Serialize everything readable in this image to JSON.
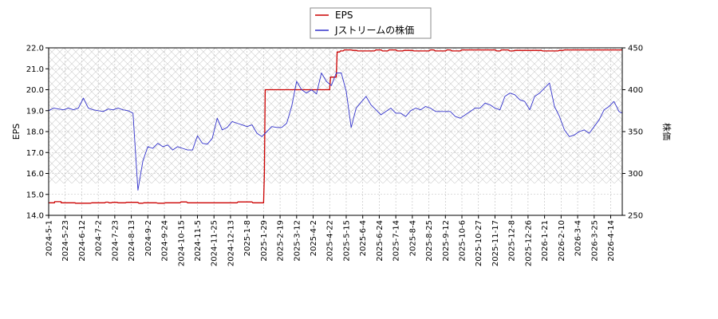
{
  "chart_data": {
    "type": "line",
    "legend_position": "top-center",
    "grid": true,
    "x_tick_labels": [
      "2024-5-1",
      "2024-5-23",
      "2024-6-12",
      "2024-7-2",
      "2024-7-23",
      "2024-8-13",
      "2024-9-2",
      "2024-9-24",
      "2024-10-15",
      "2024-11-5",
      "2024-11-25",
      "2024-12-13",
      "2025-1-8",
      "2025-1-29",
      "2025-2-19",
      "2025-3-12",
      "2025-4-2",
      "2025-4-22",
      "2025-5-15",
      "2025-6-4",
      "2025-6-24",
      "2025-7-14",
      "2025-8-4",
      "2025-8-25",
      "2025-9-12",
      "2025-10-6",
      "2025-10-27",
      "2025-11-17",
      "2025-12-8",
      "2025-12-26",
      "2026-1-21",
      "2026-2-10",
      "2026-3-4",
      "2026-3-25",
      "2026-4-14"
    ],
    "left_axis": {
      "label": "EPS",
      "ylim": [
        14.0,
        22.0
      ],
      "ticks": [
        "14.0",
        "15.0",
        "16.0",
        "17.0",
        "18.0",
        "19.0",
        "20.0",
        "21.0",
        "22.0"
      ]
    },
    "right_axis": {
      "label": "株価",
      "ylim": [
        250,
        450
      ],
      "ticks": [
        "250",
        "300",
        "350",
        "400",
        "450"
      ]
    },
    "series": [
      {
        "name": "EPS",
        "color": "#cc0000",
        "axis": "left",
        "x": [
          0,
          0.35,
          0.36,
          0.75,
          0.76,
          1.1,
          1.11,
          1.6,
          1.61,
          2.55,
          2.6,
          2.95,
          3.0,
          3.4,
          3.45,
          3.6,
          3.65,
          3.8,
          3.85,
          4.15,
          4.2,
          4.65,
          4.7,
          5.4,
          5.45,
          5.7,
          5.75,
          6.5,
          6.6,
          7.0,
          7.05,
          7.95,
          8.0,
          8.35,
          8.4,
          8.6,
          8.65,
          11.4,
          11.45,
          12.3,
          12.35,
          13.0,
          13.05,
          13.1,
          13.15,
          17.0,
          17.05,
          17.4,
          17.45,
          17.6,
          17.65,
          17.8,
          17.9,
          18.3,
          18.4,
          18.6,
          18.7,
          19.7,
          19.8,
          20.1,
          20.2,
          20.5,
          20.6,
          21.0,
          21.1,
          21.4,
          21.5,
          22.0,
          22.1,
          23.0,
          23.1,
          23.3,
          23.4,
          24.0,
          24.1,
          24.3,
          24.4,
          24.9,
          25.0,
          27.0,
          27.1,
          27.3,
          27.4,
          27.8,
          27.9,
          28.1,
          28.2,
          29.8,
          29.9,
          30.8,
          30.9,
          31.1,
          31.2,
          34.9
        ],
        "values": [
          14.6,
          14.6,
          14.65,
          14.65,
          14.6,
          14.6,
          14.6,
          14.6,
          14.58,
          14.58,
          14.6,
          14.6,
          14.6,
          14.6,
          14.63,
          14.63,
          14.6,
          14.6,
          14.62,
          14.62,
          14.6,
          14.6,
          14.62,
          14.62,
          14.58,
          14.58,
          14.6,
          14.6,
          14.58,
          14.58,
          14.6,
          14.6,
          14.64,
          14.64,
          14.6,
          14.6,
          14.6,
          14.6,
          14.64,
          14.64,
          14.6,
          14.6,
          16.0,
          20.0,
          20.0,
          20.0,
          20.6,
          20.6,
          21.8,
          21.8,
          21.85,
          21.85,
          21.9,
          21.9,
          21.88,
          21.88,
          21.85,
          21.85,
          21.9,
          21.9,
          21.85,
          21.85,
          21.9,
          21.9,
          21.85,
          21.85,
          21.88,
          21.88,
          21.85,
          21.85,
          21.9,
          21.9,
          21.85,
          21.85,
          21.9,
          21.9,
          21.85,
          21.85,
          21.9,
          21.9,
          21.85,
          21.85,
          21.9,
          21.9,
          21.85,
          21.85,
          21.88,
          21.88,
          21.85,
          21.85,
          21.88,
          21.88,
          21.9,
          21.9
        ]
      },
      {
        "name": "Jストリームの株価",
        "color": "#3333cc",
        "axis": "right",
        "x": [
          0,
          0.3,
          0.6,
          0.9,
          1.2,
          1.5,
          1.8,
          2.1,
          2.4,
          2.7,
          3.0,
          3.3,
          3.6,
          3.9,
          4.2,
          4.5,
          4.8,
          5.1,
          5.4,
          5.7,
          6.0,
          6.3,
          6.6,
          6.9,
          7.2,
          7.5,
          7.8,
          8.1,
          8.4,
          8.7,
          9.0,
          9.3,
          9.6,
          9.9,
          10.2,
          10.5,
          10.8,
          11.1,
          11.4,
          11.7,
          12.0,
          12.3,
          12.6,
          12.9,
          13.2,
          13.5,
          13.8,
          14.1,
          14.4,
          14.7,
          15.0,
          15.3,
          15.6,
          15.9,
          16.2,
          16.5,
          16.8,
          17.1,
          17.4,
          17.7,
          18.0,
          18.3,
          18.6,
          18.9,
          19.2,
          19.5,
          19.8,
          20.1,
          20.4,
          20.7,
          21.0,
          21.3,
          21.6,
          21.9,
          22.2,
          22.5,
          22.8,
          23.1,
          23.4,
          23.7,
          24.0,
          24.3,
          24.6,
          24.9,
          25.2,
          25.5,
          25.8,
          26.1,
          26.4,
          26.7,
          27.0,
          27.3,
          27.6,
          27.9,
          28.2,
          28.5,
          28.8,
          29.1,
          29.4,
          29.7,
          30.0,
          30.3,
          30.6,
          30.9,
          31.2,
          31.5,
          31.8,
          32.1,
          32.4,
          32.7,
          33.0,
          33.3,
          33.6,
          33.9,
          34.2,
          34.5,
          34.9
        ],
        "values": [
          375,
          378,
          377,
          376,
          378,
          376,
          378,
          390,
          378,
          376,
          375,
          374,
          377,
          376,
          378,
          376,
          375,
          372,
          280,
          315,
          332,
          330,
          336,
          332,
          334,
          328,
          332,
          330,
          328,
          328,
          345,
          336,
          335,
          342,
          366,
          352,
          355,
          362,
          360,
          358,
          356,
          358,
          348,
          344,
          350,
          356,
          355,
          355,
          360,
          380,
          410,
          400,
          396,
          400,
          395,
          420,
          410,
          405,
          420,
          420,
          398,
          355,
          378,
          385,
          392,
          382,
          376,
          370,
          374,
          378,
          372,
          372,
          368,
          375,
          378,
          376,
          380,
          378,
          374,
          374,
          374,
          374,
          368,
          366,
          370,
          374,
          378,
          378,
          384,
          382,
          378,
          376,
          392,
          396,
          394,
          388,
          386,
          376,
          392,
          396,
          402,
          408,
          380,
          368,
          352,
          344,
          346,
          350,
          352,
          348,
          356,
          364,
          376,
          380,
          386,
          374,
          370
        ]
      }
    ]
  }
}
